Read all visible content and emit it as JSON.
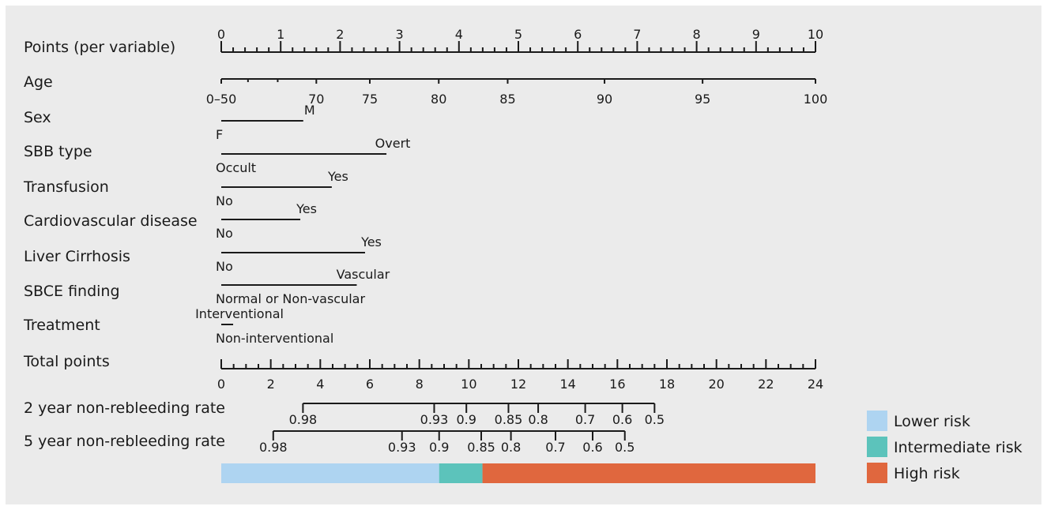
{
  "chart_data": {
    "type": "nomogram",
    "points_axis": {
      "label": "Points (per variable)",
      "range": [
        0,
        10
      ],
      "ticks": [
        "0",
        "1",
        "2",
        "3",
        "4",
        "5",
        "6",
        "7",
        "8",
        "9",
        "10"
      ]
    },
    "variables": [
      {
        "key": "age",
        "label": "Age",
        "type": "continuous",
        "ticks": [
          {
            "v": 50,
            "label": "0–50",
            "p": 0
          },
          {
            "v": 70,
            "label": "70",
            "p": 1.6
          },
          {
            "v": 75,
            "label": "75",
            "p": 2.5
          },
          {
            "v": 80,
            "label": "80",
            "p": 3.66
          },
          {
            "v": 85,
            "label": "85",
            "p": 4.82
          },
          {
            "v": 90,
            "label": "90",
            "p": 6.45
          },
          {
            "v": 95,
            "label": "95",
            "p": 8.1
          },
          {
            "v": 100,
            "label": "100",
            "p": 10
          }
        ]
      },
      {
        "key": "sex",
        "label": "Sex",
        "type": "categorical",
        "levels": [
          {
            "name": "F",
            "p": 0
          },
          {
            "name": "M",
            "p": 1.38
          }
        ]
      },
      {
        "key": "sbb",
        "label": "SBB type",
        "type": "categorical",
        "levels": [
          {
            "name": "Occult",
            "p": 0
          },
          {
            "name": "Overt",
            "p": 2.78
          }
        ]
      },
      {
        "key": "transfusion",
        "label": "Transfusion",
        "type": "categorical",
        "levels": [
          {
            "name": "No",
            "p": 0
          },
          {
            "name": "Yes",
            "p": 1.86
          }
        ]
      },
      {
        "key": "cvd",
        "label": "Cardiovascular disease",
        "type": "categorical",
        "levels": [
          {
            "name": "No",
            "p": 0
          },
          {
            "name": "Yes",
            "p": 1.33
          }
        ]
      },
      {
        "key": "cirrhosis",
        "label": "Liver Cirrhosis",
        "type": "categorical",
        "levels": [
          {
            "name": "No",
            "p": 0
          },
          {
            "name": "Yes",
            "p": 2.42
          }
        ]
      },
      {
        "key": "sbce",
        "label": "SBCE finding",
        "type": "categorical",
        "levels": [
          {
            "name": "Normal or Non-vascular",
            "p": 0
          },
          {
            "name": "Vascular",
            "p": 2.28
          }
        ]
      },
      {
        "key": "treatment",
        "label": "Treatment",
        "type": "categorical",
        "levels": [
          {
            "name": "Non-interventional",
            "p": 0
          },
          {
            "name": "Interventional",
            "p": 0.2
          }
        ]
      }
    ],
    "total_points": {
      "label": "Total points",
      "range": [
        0,
        24
      ],
      "labels": [
        "0",
        "2",
        "4",
        "6",
        "8",
        "10",
        "12",
        "14",
        "16",
        "18",
        "20",
        "22",
        "24"
      ]
    },
    "outcomes": [
      {
        "key": "two_year",
        "label": "2 year non-rebleeding rate",
        "ticks": [
          {
            "rate": "0.98",
            "total": 3.3
          },
          {
            "rate": "0.93",
            "total": 8.6
          },
          {
            "rate": "0.9",
            "total": 9.9
          },
          {
            "rate": "0.85",
            "total": 11.6
          },
          {
            "rate": "0.8",
            "total": 12.8
          },
          {
            "rate": "0.7",
            "total": 14.7
          },
          {
            "rate": "0.6",
            "total": 16.2
          },
          {
            "rate": "0.5",
            "total": 17.5
          }
        ]
      },
      {
        "key": "five_year",
        "label": "5 year non-rebleeding rate",
        "ticks": [
          {
            "rate": "0.98",
            "total": 2.1
          },
          {
            "rate": "0.93",
            "total": 7.3
          },
          {
            "rate": "0.9",
            "total": 8.8
          },
          {
            "rate": "0.85",
            "total": 10.5
          },
          {
            "rate": "0.8",
            "total": 11.7
          },
          {
            "rate": "0.7",
            "total": 13.5
          },
          {
            "rate": "0.6",
            "total": 15.0
          },
          {
            "rate": "0.5",
            "total": 16.3
          }
        ]
      }
    ],
    "risk_bar": [
      {
        "name": "Lower risk",
        "from": 0,
        "to": 8.8,
        "color": "#aed4f1"
      },
      {
        "name": "Intermediate risk",
        "from": 8.8,
        "to": 10.55,
        "color": "#5cc3bb"
      },
      {
        "name": "High risk",
        "from": 10.55,
        "to": 24,
        "color": "#e0673e"
      }
    ]
  },
  "legend": [
    {
      "name": "Lower risk",
      "color": "#aed4f1"
    },
    {
      "name": "Intermediate risk",
      "color": "#5cc3bb"
    },
    {
      "name": "High risk",
      "color": "#e0673e"
    }
  ]
}
